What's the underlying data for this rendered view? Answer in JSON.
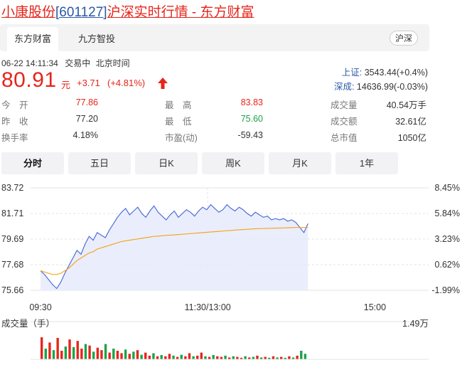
{
  "page_title": {
    "name": "小康股份",
    "code": "[601127]",
    "rest": "沪深实时行情 - 东方财富"
  },
  "tabs": [
    {
      "label": "东方财富",
      "active": true
    },
    {
      "label": "九方智投",
      "active": false
    }
  ],
  "market_badge": "沪深",
  "status": {
    "datetime": "06-22 14:11:34",
    "state": "交易中",
    "tz": "北京时间"
  },
  "indices": [
    {
      "label": "上证:",
      "value": "3543.44(+0.4%)"
    },
    {
      "label": "深成:",
      "value": "14636.99(-0.03%)"
    }
  ],
  "quote": {
    "price": "80.91",
    "unit": "元",
    "change": "+3.71",
    "change_pct": "(+4.81%)",
    "arrow": "up-arrow-icon"
  },
  "stats": [
    [
      {
        "label": "今　开",
        "value": "77.86",
        "color": "red"
      },
      {
        "label": "最　高",
        "value": "83.83",
        "color": "red"
      },
      {
        "label": "成交量",
        "value": "40.54万手",
        "color": ""
      }
    ],
    [
      {
        "label": "昨　收",
        "value": "77.20",
        "color": ""
      },
      {
        "label": "最　低",
        "value": "75.60",
        "color": "green"
      },
      {
        "label": "成交额",
        "value": "32.61亿",
        "color": ""
      }
    ],
    [
      {
        "label": "换手率",
        "value": "4.18%",
        "color": ""
      },
      {
        "label": "市盈(动)",
        "value": "-59.43",
        "color": ""
      },
      {
        "label": "总市值",
        "value": "1050亿",
        "color": ""
      }
    ]
  ],
  "period_buttons": [
    {
      "label": "分时",
      "active": true
    },
    {
      "label": "五日",
      "active": false
    },
    {
      "label": "日K",
      "active": false
    },
    {
      "label": "周K",
      "active": false
    },
    {
      "label": "月K",
      "active": false
    },
    {
      "label": "1年",
      "active": false
    }
  ],
  "chart_data": {
    "type": "line",
    "y_left_ticks": [
      "83.72",
      "81.71",
      "79.69",
      "77.68",
      "75.66"
    ],
    "y_right_ticks": [
      "8.45%",
      "5.84%",
      "3.23%",
      "0.62%",
      "-1.99%"
    ],
    "x_ticks": [
      "09:30",
      "11:30/13:00",
      "15:00"
    ],
    "ylim": [
      75.66,
      83.72
    ],
    "session_fraction_elapsed": 0.8,
    "series": [
      {
        "values": [
          77.2,
          76.9,
          76.5,
          76.1,
          75.8,
          76.3,
          77.0,
          77.6,
          78.2,
          78.8,
          78.5,
          79.3,
          79.9,
          79.6,
          80.2,
          80.0,
          79.8,
          80.4,
          80.9,
          81.4,
          81.8,
          82.1,
          81.6,
          81.9,
          82.2,
          81.7,
          81.4,
          81.9,
          82.3,
          81.8,
          81.5,
          81.2,
          81.6,
          81.9,
          81.4,
          81.7,
          82.0,
          81.8,
          81.5,
          81.9,
          82.2,
          82.0,
          82.4,
          82.1,
          81.8,
          82.0,
          82.4,
          82.1,
          81.9,
          82.2,
          82.0,
          81.7,
          81.5,
          81.8,
          81.6,
          81.4,
          81.5,
          81.2,
          81.3,
          81.2,
          81.3,
          81.1,
          81.2,
          81.0,
          80.6,
          80.2,
          80.91
        ]
      },
      {
        "values": [
          77.2,
          77.1,
          77.0,
          76.9,
          76.9,
          77.0,
          77.2,
          77.4,
          77.7,
          78.0,
          78.2,
          78.4,
          78.6,
          78.7,
          78.9,
          79.0,
          79.1,
          79.2,
          79.3,
          79.4,
          79.5,
          79.55,
          79.6,
          79.65,
          79.7,
          79.75,
          79.8,
          79.85,
          79.9,
          79.92,
          79.95,
          79.98,
          80.0,
          80.02,
          80.05,
          80.07,
          80.1,
          80.12,
          80.15,
          80.17,
          80.2,
          80.22,
          80.25,
          80.27,
          80.3,
          80.32,
          80.35,
          80.37,
          80.4,
          80.42,
          80.44,
          80.46,
          80.48,
          80.5,
          80.51,
          80.52,
          80.53,
          80.54,
          80.55,
          80.56,
          80.57,
          80.58,
          80.59,
          80.6,
          80.6,
          80.61,
          80.61
        ]
      }
    ],
    "volume_label": "成交量（手）",
    "volume_max": "1.49万",
    "volume": [
      {
        "v": 0.72,
        "c": "red"
      },
      {
        "v": 0.35,
        "c": "green"
      },
      {
        "v": 0.55,
        "c": "red"
      },
      {
        "v": 0.3,
        "c": "green"
      },
      {
        "v": 0.7,
        "c": "red"
      },
      {
        "v": 0.28,
        "c": "red"
      },
      {
        "v": 0.42,
        "c": "green"
      },
      {
        "v": 0.65,
        "c": "red"
      },
      {
        "v": 0.4,
        "c": "green"
      },
      {
        "v": 0.6,
        "c": "red"
      },
      {
        "v": 0.35,
        "c": "red"
      },
      {
        "v": 0.5,
        "c": "green"
      },
      {
        "v": 0.45,
        "c": "red"
      },
      {
        "v": 0.25,
        "c": "green"
      },
      {
        "v": 0.38,
        "c": "red"
      },
      {
        "v": 0.3,
        "c": "red"
      },
      {
        "v": 0.5,
        "c": "green"
      },
      {
        "v": 0.22,
        "c": "red"
      },
      {
        "v": 0.35,
        "c": "green"
      },
      {
        "v": 0.28,
        "c": "red"
      },
      {
        "v": 0.2,
        "c": "red"
      },
      {
        "v": 0.32,
        "c": "green"
      },
      {
        "v": 0.18,
        "c": "red"
      },
      {
        "v": 0.25,
        "c": "green"
      },
      {
        "v": 0.3,
        "c": "red"
      },
      {
        "v": 0.15,
        "c": "green"
      },
      {
        "v": 0.22,
        "c": "red"
      },
      {
        "v": 0.12,
        "c": "red"
      },
      {
        "v": 0.2,
        "c": "green"
      },
      {
        "v": 0.1,
        "c": "red"
      },
      {
        "v": 0.14,
        "c": "green"
      },
      {
        "v": 0.1,
        "c": "red"
      },
      {
        "v": 0.18,
        "c": "red"
      },
      {
        "v": 0.12,
        "c": "green"
      },
      {
        "v": 0.08,
        "c": "red"
      },
      {
        "v": 0.15,
        "c": "green"
      },
      {
        "v": 0.1,
        "c": "red"
      },
      {
        "v": 0.2,
        "c": "red"
      },
      {
        "v": 0.1,
        "c": "green"
      },
      {
        "v": 0.12,
        "c": "red"
      },
      {
        "v": 0.22,
        "c": "red"
      },
      {
        "v": 0.1,
        "c": "green"
      },
      {
        "v": 0.08,
        "c": "red"
      },
      {
        "v": 0.14,
        "c": "green"
      },
      {
        "v": 0.1,
        "c": "red"
      },
      {
        "v": 0.08,
        "c": "red"
      },
      {
        "v": 0.12,
        "c": "green"
      },
      {
        "v": 0.06,
        "c": "red"
      },
      {
        "v": 0.1,
        "c": "green"
      },
      {
        "v": 0.08,
        "c": "red"
      },
      {
        "v": 0.05,
        "c": "red"
      },
      {
        "v": 0.1,
        "c": "green"
      },
      {
        "v": 0.06,
        "c": "red"
      },
      {
        "v": 0.08,
        "c": "green"
      },
      {
        "v": 0.12,
        "c": "red"
      },
      {
        "v": 0.06,
        "c": "green"
      },
      {
        "v": 0.08,
        "c": "red"
      },
      {
        "v": 0.05,
        "c": "green"
      },
      {
        "v": 0.1,
        "c": "red"
      },
      {
        "v": 0.06,
        "c": "green"
      },
      {
        "v": 0.08,
        "c": "red"
      },
      {
        "v": 0.05,
        "c": "green"
      },
      {
        "v": 0.1,
        "c": "red"
      },
      {
        "v": 0.06,
        "c": "green"
      },
      {
        "v": 0.12,
        "c": "red"
      },
      {
        "v": 0.28,
        "c": "green"
      },
      {
        "v": 0.18,
        "c": "green"
      }
    ]
  },
  "colors": {
    "up": "#e5251c",
    "down": "#1aa34a",
    "price_line": "#4e6fd8",
    "avg_line": "#f5a623",
    "fill": "#e6ebfb"
  }
}
